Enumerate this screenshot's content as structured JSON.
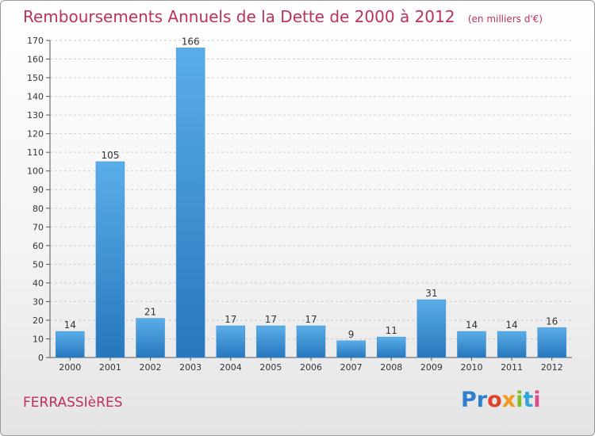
{
  "title": "Remboursements Annuels de la Dette de 2000 à 2012",
  "unit": "(en milliers d'€)",
  "commune": "FERRASSIèRES",
  "logo": [
    "Pr",
    "o",
    "x",
    "i",
    "t",
    "i"
  ],
  "colors": {
    "title": "#c0305a",
    "bar_top": "#5aaee8",
    "bar_bottom": "#2677bd",
    "logo_blue": "#2f7fd0"
  },
  "chart_data": {
    "type": "bar",
    "categories": [
      "2000",
      "2001",
      "2002",
      "2003",
      "2004",
      "2005",
      "2006",
      "2007",
      "2008",
      "2009",
      "2010",
      "2011",
      "2012"
    ],
    "values": [
      14,
      105,
      21,
      166,
      17,
      17,
      17,
      9,
      11,
      31,
      14,
      14,
      16
    ],
    "title": "Remboursements Annuels de la Dette de 2000 à 2012",
    "ylim": [
      0,
      170
    ],
    "yticks": [
      0,
      10,
      20,
      30,
      40,
      50,
      60,
      70,
      80,
      90,
      100,
      110,
      120,
      130,
      140,
      150,
      160,
      170
    ],
    "grid": true,
    "data_labels": true
  }
}
